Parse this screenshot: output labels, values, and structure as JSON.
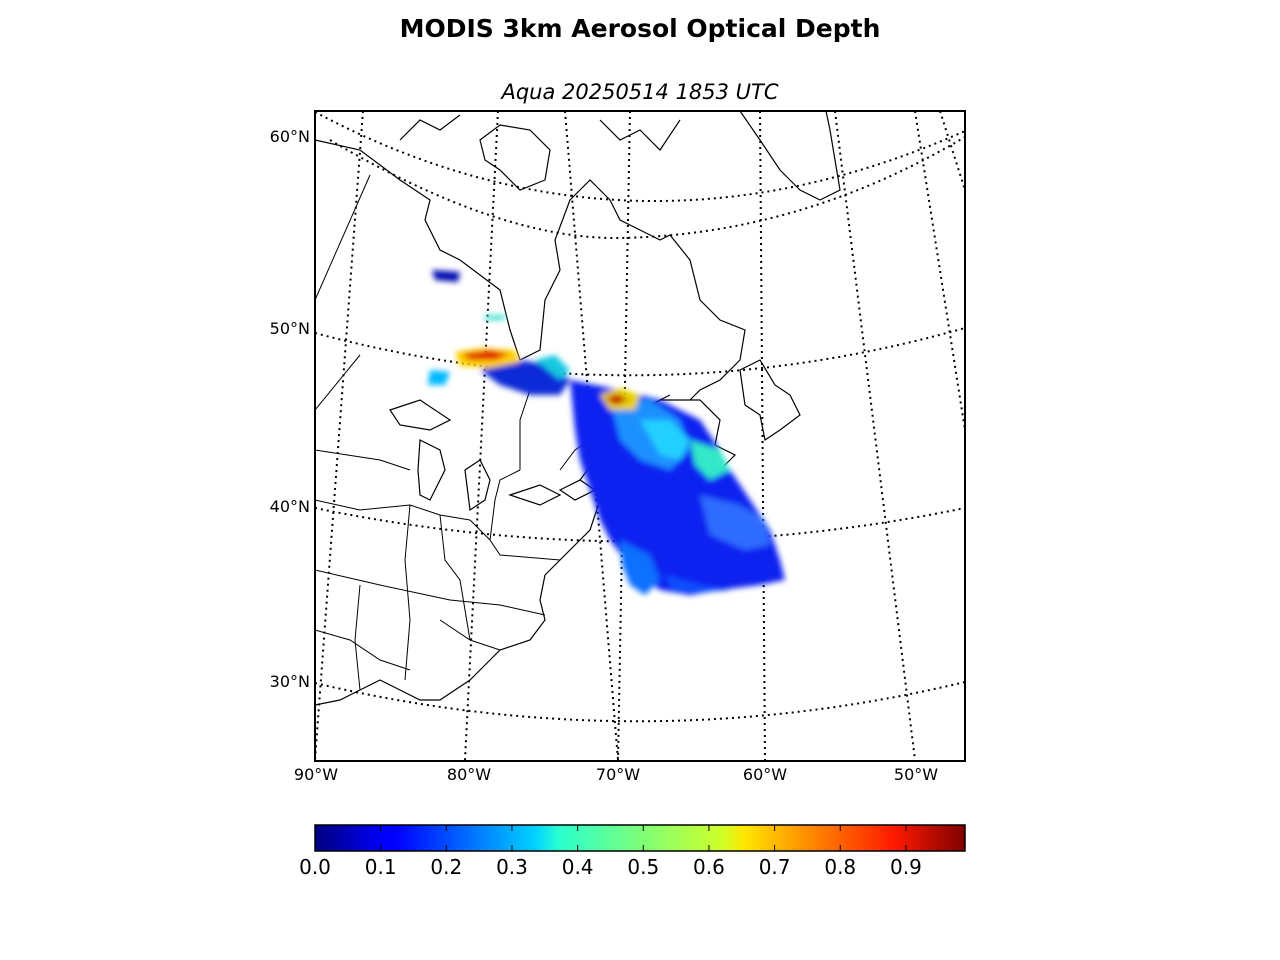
{
  "title": "MODIS 3km Aerosol Optical Depth",
  "subtitle": "Aqua 20250514 1853 UTC",
  "lat_labels": [
    "60°N",
    "50°N",
    "40°N",
    "30°N"
  ],
  "lon_labels": [
    "90°W",
    "80°W",
    "70°W",
    "60°W",
    "50°W"
  ],
  "colorbar": {
    "colormap": "jet",
    "range": [
      0.0,
      0.99
    ],
    "tick_labels": [
      "0.0",
      "0.1",
      "0.2",
      "0.3",
      "0.4",
      "0.5",
      "0.6",
      "0.7",
      "0.8",
      "0.9"
    ]
  },
  "colors": {
    "background": "#ffffff",
    "coastline": "#000000",
    "graticule": "#000000"
  }
}
